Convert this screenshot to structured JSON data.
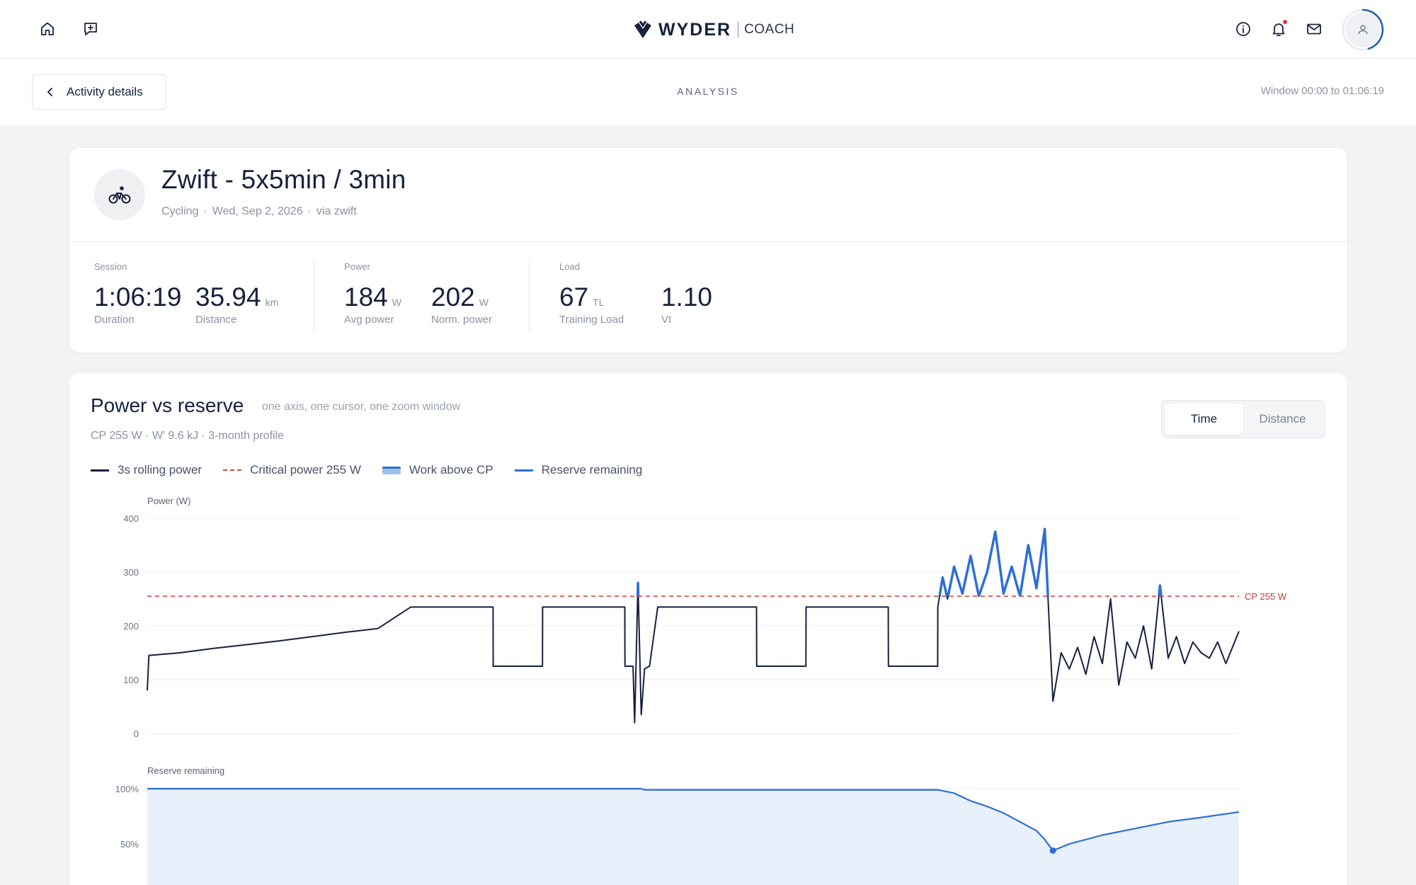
{
  "nav": {
    "logo_text": "WYDER",
    "logo_sub": "COACH",
    "left_icons": [
      "home-icon",
      "feedback-icon"
    ],
    "right_icons": [
      "info-icon",
      "bell-icon",
      "mail-icon",
      "avatar"
    ],
    "notification_dot_color": "#e0364a"
  },
  "subheader": {
    "back_label": "Activity details",
    "title": "ANALYSIS",
    "window_label": "Window 00:00 to 01:06:19"
  },
  "activity": {
    "title": "Zwift - 5x5min / 3min",
    "sport": "Cycling",
    "date": "Wed, Sep 2, 2026",
    "source": "via zwift",
    "groups": [
      {
        "label": "Session",
        "stats": [
          {
            "value": "1:06:19",
            "unit": "",
            "label": "Duration"
          },
          {
            "value": "35.94",
            "unit": "km",
            "label": "Distance"
          }
        ]
      },
      {
        "label": "Power",
        "stats": [
          {
            "value": "184",
            "unit": "W",
            "label": "Avg power"
          },
          {
            "value": "202",
            "unit": "W",
            "label": "Norm. power"
          }
        ]
      },
      {
        "label": "Load",
        "stats": [
          {
            "value": "67",
            "unit": "TL",
            "label": "Training Load"
          },
          {
            "value": "1.10",
            "unit": "",
            "label": "VI"
          }
        ]
      }
    ]
  },
  "chart": {
    "title": "Power vs reserve",
    "subtitle": "one axis, one cursor, one zoom window",
    "cp_profile": "CP 255 W · W′ 9.6 kJ · 3-month profile",
    "toggle": {
      "options": [
        "Time",
        "Distance"
      ],
      "active": "Time"
    },
    "legend": [
      "3s rolling power",
      "Critical power 255 W",
      "Work above CP",
      "Reserve remaining"
    ],
    "colors": {
      "power": "#16213e",
      "cp": "#d04a4a",
      "above": "#2d6fd6",
      "reserve": "#2d6fd6",
      "reserve_fill": "#e8f0fb"
    }
  },
  "chart_data": [
    {
      "type": "line",
      "ylabel": "Power (W)",
      "ylim": [
        0,
        400
      ],
      "yticks": [
        0,
        100,
        200,
        300,
        400
      ],
      "x_unit": "minutes",
      "xlim": [
        0,
        66.3
      ],
      "cp_line": {
        "value": 255,
        "label": "CP 255 W"
      },
      "series": [
        {
          "name": "3s rolling power",
          "x": [
            0,
            0.1,
            2,
            4,
            6,
            8,
            10,
            12,
            14,
            16,
            16.01,
            21,
            21.01,
            24,
            24.01,
            29,
            29.01,
            29.5,
            29.6,
            29.8,
            30,
            30.2,
            30.5,
            31,
            32,
            32.01,
            37,
            37.01,
            40,
            40.01,
            45,
            45.01,
            48,
            48.01,
            48.3,
            48.6,
            49,
            49.5,
            50,
            50.5,
            51,
            51.5,
            52,
            52.5,
            53,
            53.5,
            54,
            54.5,
            55,
            55.5,
            56,
            56.5,
            57,
            57.5,
            58,
            58.5,
            59,
            59.5,
            60,
            60.5,
            61,
            61.5,
            62,
            62.5,
            63,
            63.5,
            64,
            64.5,
            65,
            65.5,
            66.3
          ],
          "y": [
            80,
            145,
            150,
            158,
            165,
            172,
            180,
            188,
            195,
            235,
            235,
            235,
            125,
            125,
            235,
            235,
            125,
            125,
            20,
            280,
            35,
            120,
            125,
            235,
            235,
            235,
            235,
            125,
            125,
            235,
            235,
            125,
            125,
            235,
            290,
            250,
            310,
            260,
            330,
            255,
            300,
            375,
            260,
            310,
            255,
            350,
            270,
            380,
            60,
            150,
            120,
            160,
            110,
            180,
            130,
            250,
            90,
            170,
            140,
            200,
            120,
            275,
            140,
            180,
            130,
            170,
            150,
            140,
            170,
            130,
            190
          ],
          "color": "#16213e"
        }
      ]
    },
    {
      "type": "area",
      "ylabel": "Reserve remaining",
      "ylim": [
        0,
        100
      ],
      "yticks": [
        "50%",
        "100%"
      ],
      "x_unit": "minutes",
      "xlim": [
        0,
        66.3
      ],
      "series": [
        {
          "name": "Reserve remaining",
          "x": [
            0,
            30,
            30.2,
            48,
            49,
            50,
            51,
            52,
            53,
            54,
            54.5,
            55,
            56,
            58,
            60,
            62,
            64,
            66.3
          ],
          "y": [
            100,
            100,
            99,
            99,
            96,
            89,
            84,
            78,
            70,
            62,
            54,
            44,
            50,
            58,
            64,
            70,
            74,
            79
          ],
          "color": "#2d6fd6"
        }
      ]
    }
  ]
}
